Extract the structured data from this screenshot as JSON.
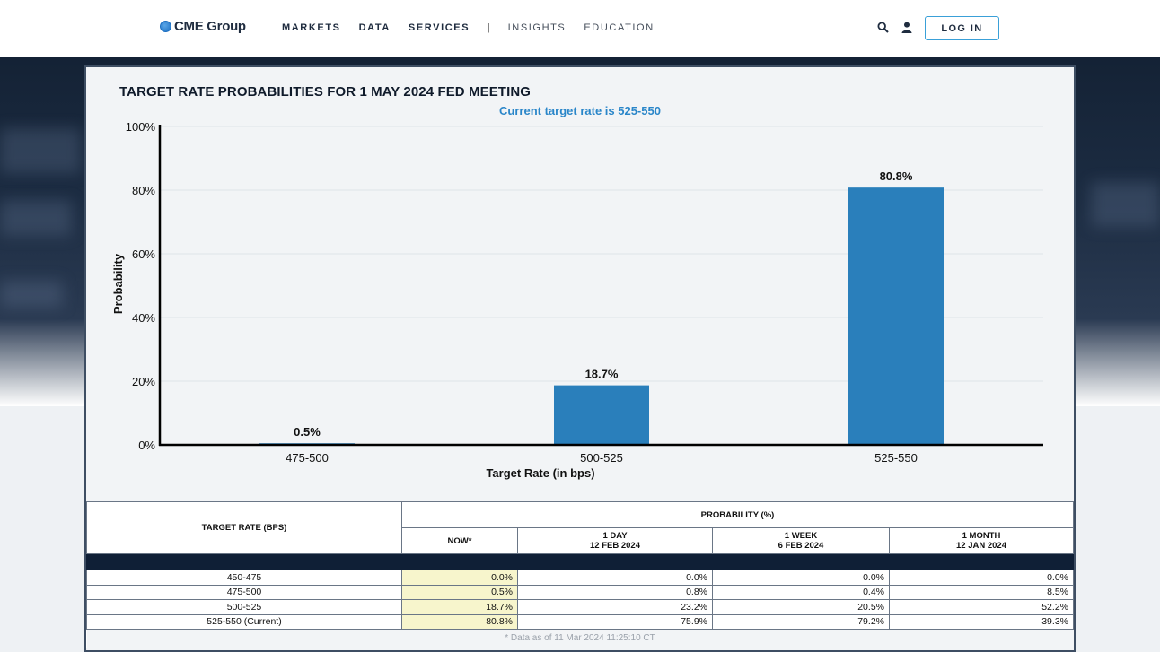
{
  "nav": {
    "brand": "CME Group",
    "links": [
      "MARKETS",
      "DATA",
      "SERVICES"
    ],
    "separator": "|",
    "secondary_links": [
      "INSIGHTS",
      "EDUCATION"
    ],
    "icons": [
      "search-icon",
      "user-icon"
    ],
    "login_label": "LOG IN"
  },
  "chart_data": {
    "type": "bar",
    "title": "TARGET RATE PROBABILITIES FOR 1 MAY 2024 FED MEETING",
    "subtitle": "Current target rate is 525-550",
    "xlabel": "Target Rate (in bps)",
    "ylabel": "Probability",
    "categories": [
      "475-500",
      "500-525",
      "525-550"
    ],
    "values": [
      0.5,
      18.7,
      80.8
    ],
    "data_labels": [
      "0.5%",
      "18.7%",
      "80.8%"
    ],
    "ylim": [
      0,
      100
    ],
    "yticks": [
      "0%",
      "20%",
      "40%",
      "60%",
      "80%",
      "100%"
    ],
    "grid": true,
    "bar_color": "#2a7fbb"
  },
  "table": {
    "rate_header": "TARGET RATE (BPS)",
    "prob_header": "PROBABILITY (%)",
    "columns": [
      {
        "line1": "NOW*",
        "line2": ""
      },
      {
        "line1": "1 DAY",
        "line2": "12 FEB 2024"
      },
      {
        "line1": "1 WEEK",
        "line2": "6 FEB 2024"
      },
      {
        "line1": "1 MONTH",
        "line2": "12 JAN 2024"
      }
    ],
    "rows": [
      {
        "rate": "450-475",
        "now": "0.0%",
        "day": "0.0%",
        "week": "0.0%",
        "month": "0.0%"
      },
      {
        "rate": "475-500",
        "now": "0.5%",
        "day": "0.8%",
        "week": "0.4%",
        "month": "8.5%"
      },
      {
        "rate": "500-525",
        "now": "18.7%",
        "day": "23.2%",
        "week": "20.5%",
        "month": "52.2%"
      },
      {
        "rate": "525-550 (Current)",
        "now": "80.8%",
        "day": "75.9%",
        "week": "79.2%",
        "month": "39.3%"
      }
    ],
    "footnote": "* Data as of 11 Mar 2024 11:25:10 CT"
  }
}
